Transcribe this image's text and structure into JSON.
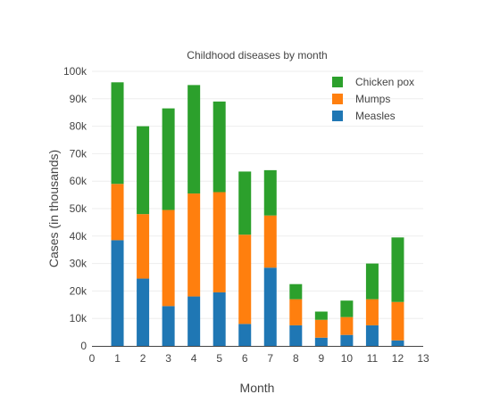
{
  "chart_data": {
    "type": "bar",
    "stacked": true,
    "title": "Childhood diseases by month",
    "xlabel": "Month",
    "ylabel": "Cases (in thousands)",
    "xlim": [
      0,
      13
    ],
    "ylim": [
      0,
      100
    ],
    "x_ticks": [
      0,
      1,
      2,
      3,
      4,
      5,
      6,
      7,
      8,
      9,
      10,
      11,
      12,
      13
    ],
    "y_ticks": [
      0,
      10,
      20,
      30,
      40,
      50,
      60,
      70,
      80,
      90,
      100
    ],
    "y_tick_labels": [
      "0",
      "10k",
      "20k",
      "30k",
      "40k",
      "50k",
      "60k",
      "70k",
      "80k",
      "90k",
      "100k"
    ],
    "x": [
      1,
      2,
      3,
      4,
      5,
      6,
      7,
      8,
      9,
      10,
      11,
      12
    ],
    "grid": true,
    "legend_position": "top-right",
    "series": [
      {
        "name": "Measles",
        "color": "#1f77b4",
        "values": [
          38.5,
          24.5,
          14.5,
          18,
          19.5,
          8,
          28.5,
          7.5,
          3,
          4,
          7.5,
          2
        ]
      },
      {
        "name": "Mumps",
        "color": "#ff7f0e",
        "values": [
          20.5,
          23.5,
          35,
          37.5,
          36.5,
          32.5,
          19,
          9.5,
          6.5,
          6.5,
          9.5,
          14
        ]
      },
      {
        "name": "Chicken pox",
        "color": "#2ca02c",
        "values": [
          37,
          32,
          37,
          39.5,
          33,
          23,
          16.5,
          5.5,
          3,
          6,
          13,
          23.5
        ]
      }
    ],
    "legend_order": [
      "Chicken pox",
      "Mumps",
      "Measles"
    ]
  }
}
